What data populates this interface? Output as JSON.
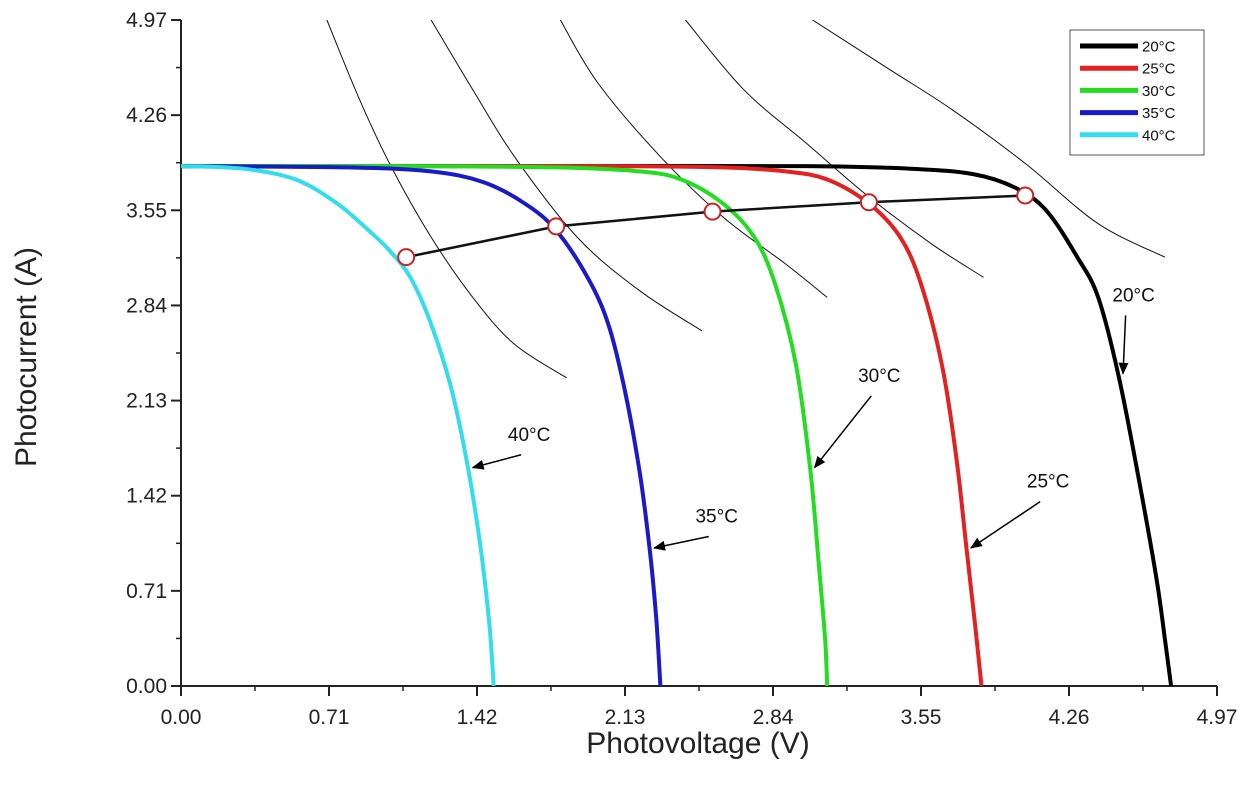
{
  "chart_data": {
    "type": "line",
    "xlabel": "Photovoltage (V)",
    "ylabel": "Photocurrent (A)",
    "xlim": [
      0,
      4.97
    ],
    "ylim": [
      0,
      4.97
    ],
    "xticks": [
      "0.00",
      "0.71",
      "1.42",
      "2.13",
      "2.84",
      "3.55",
      "4.26",
      "4.97"
    ],
    "yticks": [
      "0.00",
      "0.71",
      "1.42",
      "2.13",
      "2.84",
      "3.55",
      "4.26",
      "4.97"
    ],
    "grid": false,
    "legend_position": "top-right",
    "series": [
      {
        "name": "20°C",
        "color": "#000000",
        "isc": 3.88,
        "voc": 4.75,
        "points": [
          [
            0,
            3.88
          ],
          [
            1.0,
            3.88
          ],
          [
            2.0,
            3.88
          ],
          [
            3.0,
            3.88
          ],
          [
            3.5,
            3.86
          ],
          [
            3.8,
            3.82
          ],
          [
            4.0,
            3.72
          ],
          [
            4.15,
            3.55
          ],
          [
            4.3,
            3.2
          ],
          [
            4.4,
            2.9
          ],
          [
            4.5,
            2.3
          ],
          [
            4.6,
            1.5
          ],
          [
            4.68,
            0.8
          ],
          [
            4.72,
            0.35
          ],
          [
            4.75,
            0
          ]
        ]
      },
      {
        "name": "25°C",
        "color": "#e32121",
        "isc": 3.88,
        "voc": 3.84,
        "points": [
          [
            0,
            3.88
          ],
          [
            1.0,
            3.88
          ],
          [
            2.0,
            3.88
          ],
          [
            2.6,
            3.87
          ],
          [
            2.9,
            3.84
          ],
          [
            3.1,
            3.78
          ],
          [
            3.3,
            3.6
          ],
          [
            3.45,
            3.35
          ],
          [
            3.55,
            3.0
          ],
          [
            3.65,
            2.4
          ],
          [
            3.72,
            1.7
          ],
          [
            3.77,
            1.0
          ],
          [
            3.81,
            0.45
          ],
          [
            3.84,
            0
          ]
        ]
      },
      {
        "name": "30°C",
        "color": "#22dd22",
        "isc": 3.88,
        "voc": 3.1,
        "points": [
          [
            0,
            3.88
          ],
          [
            1.0,
            3.88
          ],
          [
            1.8,
            3.87
          ],
          [
            2.2,
            3.84
          ],
          [
            2.4,
            3.78
          ],
          [
            2.6,
            3.6
          ],
          [
            2.75,
            3.35
          ],
          [
            2.85,
            3.0
          ],
          [
            2.95,
            2.4
          ],
          [
            3.02,
            1.6
          ],
          [
            3.06,
            0.9
          ],
          [
            3.09,
            0.35
          ],
          [
            3.1,
            0
          ]
        ]
      },
      {
        "name": "35°C",
        "color": "#1a1ac8",
        "isc": 3.88,
        "voc": 2.3,
        "points": [
          [
            0,
            3.88
          ],
          [
            0.8,
            3.87
          ],
          [
            1.2,
            3.84
          ],
          [
            1.45,
            3.76
          ],
          [
            1.65,
            3.6
          ],
          [
            1.8,
            3.4
          ],
          [
            1.95,
            3.05
          ],
          [
            2.05,
            2.7
          ],
          [
            2.13,
            2.2
          ],
          [
            2.2,
            1.6
          ],
          [
            2.25,
            1.0
          ],
          [
            2.28,
            0.5
          ],
          [
            2.3,
            0
          ]
        ]
      },
      {
        "name": "40°C",
        "color": "#33ddee",
        "isc": 3.88,
        "voc": 1.5,
        "points": [
          [
            0,
            3.88
          ],
          [
            0.3,
            3.86
          ],
          [
            0.55,
            3.78
          ],
          [
            0.75,
            3.6
          ],
          [
            0.9,
            3.4
          ],
          [
            1.0,
            3.25
          ],
          [
            1.1,
            3.05
          ],
          [
            1.2,
            2.7
          ],
          [
            1.3,
            2.2
          ],
          [
            1.38,
            1.6
          ],
          [
            1.44,
            1.0
          ],
          [
            1.48,
            0.45
          ],
          [
            1.5,
            0
          ]
        ]
      }
    ],
    "mpp_line": [
      [
        1.08,
        3.2
      ],
      [
        1.8,
        3.43
      ],
      [
        2.55,
        3.54
      ],
      [
        3.3,
        3.61
      ],
      [
        4.05,
        3.66
      ]
    ],
    "power_curves": [
      [
        [
          0.7,
          4.97
        ],
        [
          0.85,
          4.4
        ],
        [
          1.0,
          3.9
        ],
        [
          1.2,
          3.35
        ],
        [
          1.4,
          2.9
        ],
        [
          1.6,
          2.55
        ],
        [
          1.85,
          2.3
        ]
      ],
      [
        [
          1.2,
          4.97
        ],
        [
          1.4,
          4.45
        ],
        [
          1.6,
          3.95
        ],
        [
          1.9,
          3.35
        ],
        [
          2.2,
          2.95
        ],
        [
          2.5,
          2.65
        ]
      ],
      [
        [
          1.82,
          4.97
        ],
        [
          2.0,
          4.5
        ],
        [
          2.3,
          3.95
        ],
        [
          2.6,
          3.5
        ],
        [
          2.9,
          3.15
        ],
        [
          3.1,
          2.9
        ]
      ],
      [
        [
          2.42,
          4.97
        ],
        [
          2.7,
          4.45
        ],
        [
          3.0,
          4.05
        ],
        [
          3.3,
          3.65
        ],
        [
          3.6,
          3.3
        ],
        [
          3.85,
          3.05
        ]
      ],
      [
        [
          3.03,
          4.97
        ],
        [
          3.4,
          4.6
        ],
        [
          3.7,
          4.3
        ],
        [
          4.05,
          3.9
        ],
        [
          4.4,
          3.45
        ],
        [
          4.72,
          3.2
        ]
      ]
    ],
    "annotations": [
      {
        "text": "20°C",
        "at": [
          4.57,
          2.87
        ]
      },
      {
        "text": "25°C",
        "at": [
          4.16,
          1.48
        ]
      },
      {
        "text": "30°C",
        "at": [
          3.35,
          2.27
        ]
      },
      {
        "text": "35°C",
        "at": [
          2.57,
          1.22
        ]
      },
      {
        "text": "40°C",
        "at": [
          1.67,
          1.83
        ]
      }
    ]
  }
}
